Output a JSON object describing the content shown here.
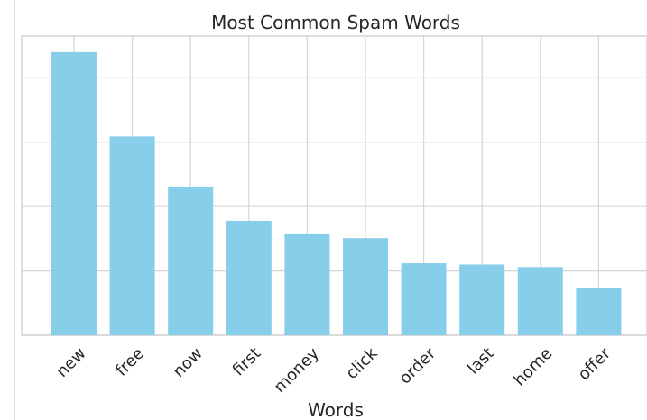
{
  "chart_data": {
    "type": "bar",
    "title": "Most Common Spam Words",
    "xlabel": "Words",
    "ylabel": "",
    "categories": [
      "new",
      "free",
      "now",
      "first",
      "money",
      "click",
      "order",
      "last",
      "home",
      "offer"
    ],
    "values": [
      440,
      309,
      231,
      178,
      157,
      151,
      112,
      110,
      106,
      73
    ],
    "ylim": [
      0,
      465
    ],
    "yticks": [
      0,
      100,
      200,
      300,
      400
    ],
    "grid": true,
    "colors": {
      "bar": "#87ceeb",
      "grid": "#d6d6d6",
      "text": "#262626"
    }
  }
}
